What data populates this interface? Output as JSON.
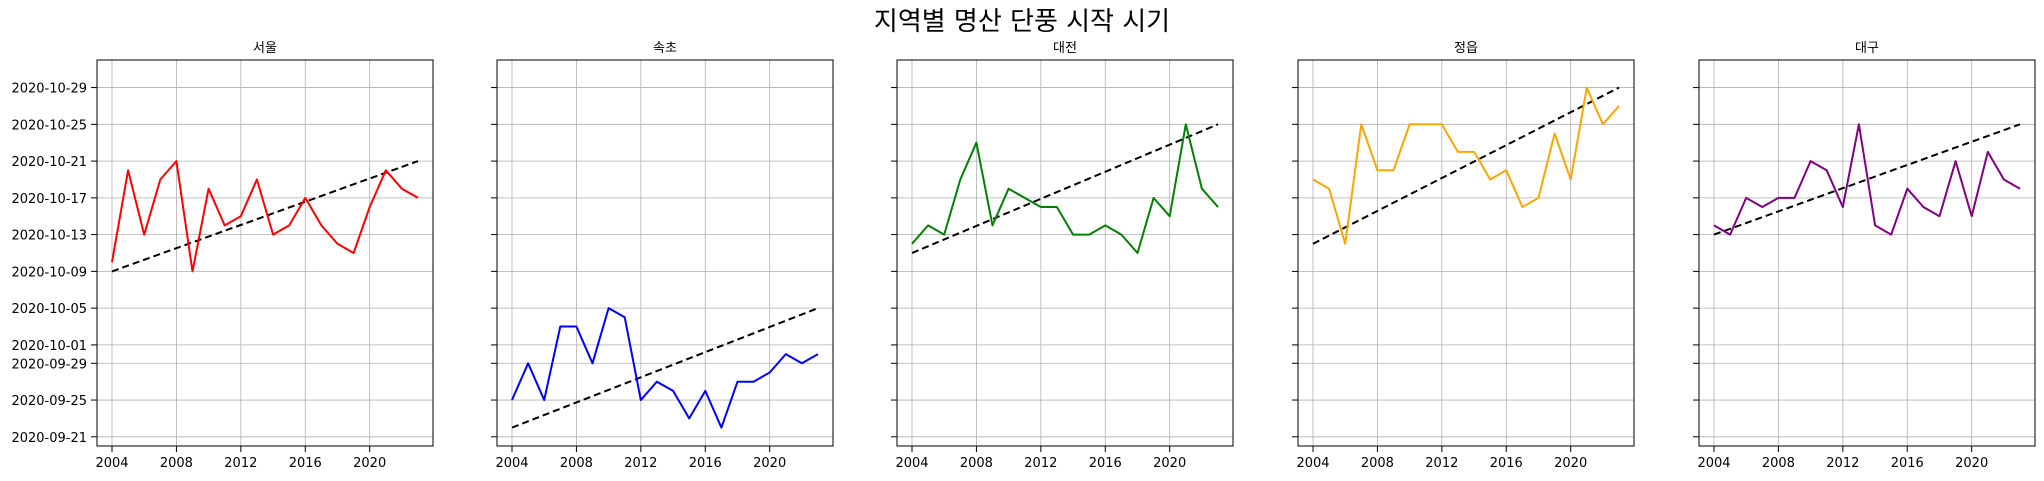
{
  "figure": {
    "title": "지역별 명산 단풍 시작 시기"
  },
  "chart_data": {
    "type": "line",
    "title": "지역별 명산 단풍 시작 시기",
    "x": [
      2004,
      2005,
      2006,
      2007,
      2008,
      2009,
      2010,
      2011,
      2012,
      2013,
      2014,
      2015,
      2016,
      2017,
      2018,
      2019,
      2020,
      2021,
      2022,
      2023
    ],
    "x_ticks": [
      "2004",
      "2008",
      "2012",
      "2016",
      "2020"
    ],
    "y_ticks": [
      "2020-09-21",
      "2020-09-25",
      "2020-09-29",
      "2020-10-01",
      "2020-10-05",
      "2020-10-09",
      "2020-10-13",
      "2020-10-17",
      "2020-10-21",
      "2020-10-25",
      "2020-10-29"
    ],
    "ylim": [
      "2020-09-20",
      "2020-11-01"
    ],
    "shared_y": true,
    "grid": true,
    "panels": [
      {
        "title": "서울",
        "color": "#ff0000",
        "values": [
          "2020-10-10",
          "2020-10-20",
          "2020-10-13",
          "2020-10-19",
          "2020-10-21",
          "2020-10-09",
          "2020-10-18",
          "2020-10-14",
          "2020-10-15",
          "2020-10-19",
          "2020-10-13",
          "2020-10-14",
          "2020-10-17",
          "2020-10-14",
          "2020-10-12",
          "2020-10-11",
          "2020-10-16",
          "2020-10-20",
          "2020-10-18",
          "2020-10-17"
        ],
        "trend": [
          "2020-10-09",
          "2020-10-21"
        ]
      },
      {
        "title": "속초",
        "color": "#0000ff",
        "values": [
          "2020-09-25",
          "2020-09-29",
          "2020-09-25",
          "2020-10-03",
          "2020-10-03",
          "2020-09-29",
          "2020-10-05",
          "2020-10-04",
          "2020-09-25",
          "2020-09-27",
          "2020-09-26",
          "2020-09-23",
          "2020-09-26",
          "2020-09-22",
          "2020-09-27",
          "2020-09-27",
          "2020-09-28",
          "2020-09-30",
          "2020-09-29",
          "2020-09-30"
        ],
        "trend": [
          "2020-09-22",
          "2020-10-05"
        ]
      },
      {
        "title": "대전",
        "color": "#008000",
        "values": [
          "2020-10-12",
          "2020-10-14",
          "2020-10-13",
          "2020-10-19",
          "2020-10-23",
          "2020-10-14",
          "2020-10-18",
          "2020-10-17",
          "2020-10-16",
          "2020-10-16",
          "2020-10-13",
          "2020-10-13",
          "2020-10-14",
          "2020-10-13",
          "2020-10-11",
          "2020-10-17",
          "2020-10-15",
          "2020-10-25",
          "2020-10-18",
          "2020-10-16"
        ],
        "trend": [
          "2020-10-11",
          "2020-10-25"
        ]
      },
      {
        "title": "정읍",
        "color": "#ffa500",
        "values": [
          "2020-10-19",
          "2020-10-18",
          "2020-10-12",
          "2020-10-25",
          "2020-10-20",
          "2020-10-20",
          "2020-10-25",
          "2020-10-25",
          "2020-10-25",
          "2020-10-22",
          "2020-10-22",
          "2020-10-19",
          "2020-10-20",
          "2020-10-16",
          "2020-10-17",
          "2020-10-24",
          "2020-10-19",
          "2020-10-29",
          "2020-10-25",
          "2020-10-27"
        ],
        "trend": [
          "2020-10-12",
          "2020-10-29"
        ]
      },
      {
        "title": "대구",
        "color": "#800080",
        "values": [
          "2020-10-14",
          "2020-10-13",
          "2020-10-17",
          "2020-10-16",
          "2020-10-17",
          "2020-10-17",
          "2020-10-21",
          "2020-10-20",
          "2020-10-16",
          "2020-10-25",
          "2020-10-14",
          "2020-10-13",
          "2020-10-18",
          "2020-10-16",
          "2020-10-15",
          "2020-10-21",
          "2020-10-15",
          "2020-10-22",
          "2020-10-19",
          "2020-10-18"
        ],
        "trend": [
          "2020-10-13",
          "2020-10-25"
        ]
      }
    ]
  }
}
